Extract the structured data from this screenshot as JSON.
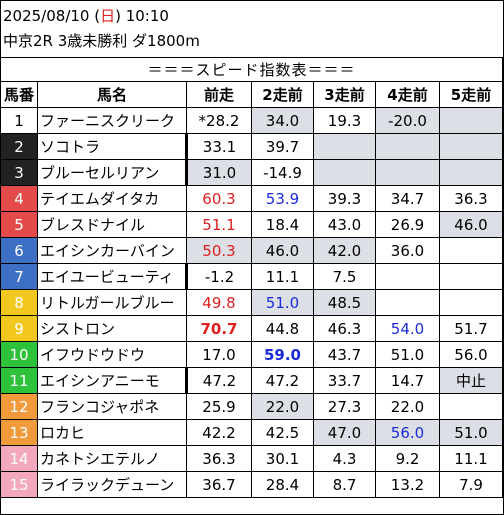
{
  "header": {
    "date_prefix": "2025/08/10 (",
    "day": "日",
    "date_suffix": ") 10:10",
    "race": "中京2R 3歳未勝利 ダ1800m"
  },
  "table_title": "＝＝＝スピード指数表＝＝＝",
  "columns": [
    "馬番",
    "馬名",
    "前走",
    "2走前",
    "3走前",
    "4走前",
    "5走前"
  ],
  "colors": {
    "day": "#e02020",
    "red": "#e02020",
    "blue": "#1b2bd8",
    "gray": "#dddfe6"
  },
  "rows": [
    {
      "num": "1",
      "bg": "#ffffff",
      "fg": "#000000",
      "name": "ファーニスクリーク",
      "vals": [
        "*28.2",
        "34.0",
        "19.3",
        "-20.0",
        ""
      ],
      "gray": [
        0,
        1,
        0,
        1,
        1
      ],
      "color": [
        "",
        "",
        "",
        "",
        ""
      ],
      "bold": [
        0,
        0,
        0,
        0,
        0
      ],
      "bar": false
    },
    {
      "num": "2",
      "bg": "#222222",
      "fg": "#ffffff",
      "name": "ソコトラ",
      "vals": [
        "33.1",
        "39.7",
        "",
        "",
        ""
      ],
      "gray": [
        0,
        0,
        1,
        1,
        1
      ],
      "color": [
        "",
        "",
        "",
        "",
        ""
      ],
      "bold": [
        0,
        0,
        0,
        0,
        0
      ],
      "bar": true
    },
    {
      "num": "3",
      "bg": "#222222",
      "fg": "#ffffff",
      "name": "ブルーセルリアン",
      "vals": [
        "31.0",
        "-14.9",
        "",
        "",
        ""
      ],
      "gray": [
        1,
        0,
        1,
        1,
        1
      ],
      "color": [
        "",
        "",
        "",
        "",
        ""
      ],
      "bold": [
        0,
        0,
        0,
        0,
        0
      ],
      "bar": true
    },
    {
      "num": "4",
      "bg": "#e54a4a",
      "fg": "#ffffff",
      "name": "テイエムダイタカ",
      "vals": [
        "60.3",
        "53.9",
        "39.3",
        "34.7",
        "36.3"
      ],
      "gray": [
        0,
        0,
        0,
        0,
        0
      ],
      "color": [
        "red",
        "blue",
        "",
        "",
        ""
      ],
      "bold": [
        0,
        0,
        0,
        0,
        0
      ],
      "bar": false
    },
    {
      "num": "5",
      "bg": "#e54a4a",
      "fg": "#ffffff",
      "name": "ブレスドナイル",
      "vals": [
        "51.1",
        "18.4",
        "43.0",
        "26.9",
        "46.0"
      ],
      "gray": [
        0,
        0,
        0,
        0,
        1
      ],
      "color": [
        "red",
        "",
        "",
        "",
        ""
      ],
      "bold": [
        0,
        0,
        0,
        0,
        0
      ],
      "bar": false
    },
    {
      "num": "6",
      "bg": "#3d6fc4",
      "fg": "#ffffff",
      "name": "エイシンカーバイン",
      "vals": [
        "50.3",
        "46.0",
        "42.0",
        "36.0",
        ""
      ],
      "gray": [
        1,
        1,
        1,
        0,
        0
      ],
      "color": [
        "red",
        "",
        "",
        "",
        ""
      ],
      "bold": [
        0,
        0,
        0,
        0,
        0
      ],
      "bar": false
    },
    {
      "num": "7",
      "bg": "#3d6fc4",
      "fg": "#ffffff",
      "name": "エイユービューティ",
      "vals": [
        "-1.2",
        "11.1",
        "7.5",
        "",
        ""
      ],
      "gray": [
        0,
        0,
        0,
        0,
        0
      ],
      "color": [
        "",
        "",
        "",
        "",
        ""
      ],
      "bold": [
        0,
        0,
        0,
        0,
        0
      ],
      "bar": true
    },
    {
      "num": "8",
      "bg": "#f2c71e",
      "fg": "#ffffff",
      "name": "リトルガールブルー",
      "vals": [
        "49.8",
        "51.0",
        "48.5",
        "",
        ""
      ],
      "gray": [
        0,
        1,
        1,
        0,
        0
      ],
      "color": [
        "red",
        "blue",
        "",
        "",
        ""
      ],
      "bold": [
        0,
        0,
        0,
        0,
        0
      ],
      "bar": false
    },
    {
      "num": "9",
      "bg": "#f2c71e",
      "fg": "#ffffff",
      "name": "シストロン",
      "vals": [
        "70.7",
        "44.8",
        "46.3",
        "54.0",
        "51.7"
      ],
      "gray": [
        0,
        0,
        0,
        0,
        0
      ],
      "color": [
        "red",
        "",
        "",
        "blue",
        ""
      ],
      "bold": [
        1,
        0,
        0,
        0,
        0
      ],
      "bar": false
    },
    {
      "num": "10",
      "bg": "#2ec13a",
      "fg": "#ffffff",
      "name": "イフウドウドウ",
      "vals": [
        "17.0",
        "59.0",
        "43.7",
        "51.0",
        "56.0"
      ],
      "gray": [
        0,
        0,
        0,
        0,
        0
      ],
      "color": [
        "",
        "blue",
        "",
        "",
        ""
      ],
      "bold": [
        0,
        1,
        0,
        0,
        0
      ],
      "bar": false
    },
    {
      "num": "11",
      "bg": "#2ec13a",
      "fg": "#ffffff",
      "name": "エイシンアニーモ",
      "vals": [
        "47.2",
        "47.2",
        "33.7",
        "14.7",
        "中止"
      ],
      "gray": [
        0,
        0,
        0,
        0,
        1
      ],
      "color": [
        "",
        "",
        "",
        "",
        ""
      ],
      "bold": [
        0,
        0,
        0,
        0,
        0
      ],
      "bar": true
    },
    {
      "num": "12",
      "bg": "#f19a3c",
      "fg": "#ffffff",
      "name": "フランコジャポネ",
      "vals": [
        "25.9",
        "22.0",
        "27.3",
        "22.0",
        ""
      ],
      "gray": [
        0,
        1,
        0,
        0,
        0
      ],
      "color": [
        "",
        "",
        "",
        "",
        ""
      ],
      "bold": [
        0,
        0,
        0,
        0,
        0
      ],
      "bar": false
    },
    {
      "num": "13",
      "bg": "#f19a3c",
      "fg": "#ffffff",
      "name": "ロカヒ",
      "vals": [
        "42.2",
        "42.5",
        "47.0",
        "56.0",
        "51.0"
      ],
      "gray": [
        0,
        0,
        1,
        1,
        1
      ],
      "color": [
        "",
        "",
        "",
        "blue",
        ""
      ],
      "bold": [
        0,
        0,
        0,
        0,
        0
      ],
      "bar": false
    },
    {
      "num": "14",
      "bg": "#f4a8bd",
      "fg": "#ffffff",
      "name": "カネトシエテルノ",
      "vals": [
        "36.3",
        "30.1",
        "4.3",
        "9.2",
        "11.1"
      ],
      "gray": [
        0,
        0,
        0,
        0,
        0
      ],
      "color": [
        "",
        "",
        "",
        "",
        ""
      ],
      "bold": [
        0,
        0,
        0,
        0,
        0
      ],
      "bar": false
    },
    {
      "num": "15",
      "bg": "#f4a8bd",
      "fg": "#ffffff",
      "name": "ライラックデューン",
      "vals": [
        "36.7",
        "28.4",
        "8.7",
        "13.2",
        "7.9"
      ],
      "gray": [
        0,
        0,
        0,
        0,
        0
      ],
      "color": [
        "",
        "",
        "",
        "",
        ""
      ],
      "bold": [
        0,
        0,
        0,
        0,
        0
      ],
      "bar": false
    }
  ]
}
